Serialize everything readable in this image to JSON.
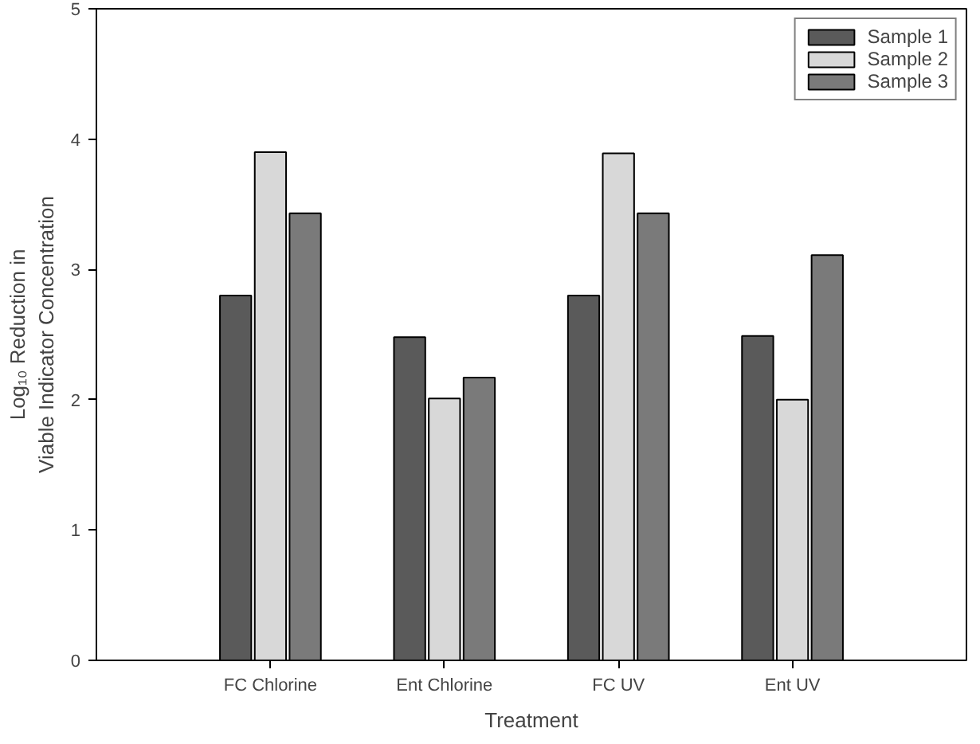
{
  "chart_data": {
    "type": "bar",
    "categories": [
      "FC Chlorine",
      "Ent Chlorine",
      "FC UV",
      "Ent UV"
    ],
    "series": [
      {
        "name": "Sample 1",
        "color": "#5a5a5a",
        "values": [
          2.8,
          2.48,
          2.8,
          2.49
        ]
      },
      {
        "name": "Sample 2",
        "color": "#d8d8d8",
        "values": [
          3.9,
          2.01,
          3.89,
          2.0
        ]
      },
      {
        "name": "Sample 3",
        "color": "#7a7a7a",
        "values": [
          3.43,
          2.17,
          3.43,
          3.11
        ]
      }
    ],
    "xlabel": "Treatment",
    "ylabel": "Log₁₀ Reduction in\nViable Indicator Concentration",
    "ylim": [
      0,
      5
    ],
    "yticks": [
      0,
      1,
      2,
      3,
      4,
      5
    ],
    "grid": false,
    "legend": "top right"
  }
}
